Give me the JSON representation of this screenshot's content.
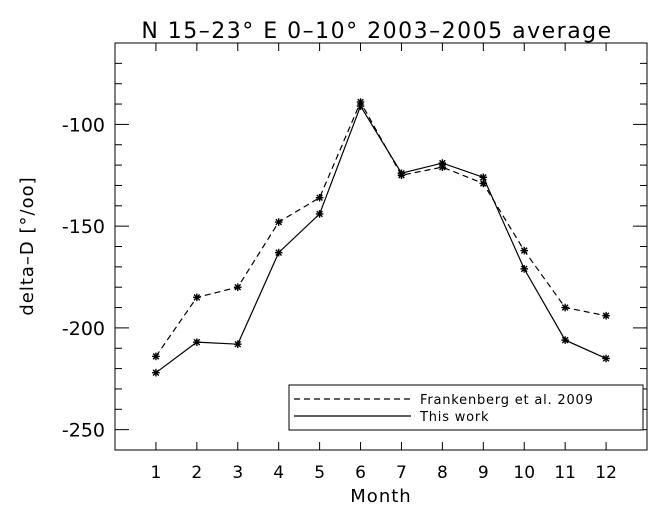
{
  "chart_data": {
    "type": "line",
    "title": "N 15–23° E 0–10° 2003–2005 average",
    "xlabel": "Month",
    "ylabel": "delta–D [°/oo]",
    "x": [
      1,
      2,
      3,
      4,
      5,
      6,
      7,
      8,
      9,
      10,
      11,
      12
    ],
    "xticks": [
      1,
      2,
      3,
      4,
      5,
      6,
      7,
      8,
      9,
      10,
      11,
      12
    ],
    "yticks": [
      -100,
      -150,
      -200,
      -250
    ],
    "xlim": [
      0,
      13
    ],
    "ylim": [
      -260,
      -60
    ],
    "grid": false,
    "legend": "bottom-right",
    "series": [
      {
        "name": "Frankenberg et al. 2009",
        "style": "dashed",
        "color": "#000000",
        "values": [
          -214,
          -185,
          -180,
          -148,
          -136,
          -89,
          -125,
          -121,
          -129,
          -162,
          -190,
          -194
        ]
      },
      {
        "name": "This work",
        "style": "solid",
        "color": "#000000",
        "values": [
          -222,
          -207,
          -208,
          -163,
          -144,
          -91,
          -124,
          -119,
          -126,
          -171,
          -206,
          -215
        ]
      }
    ]
  }
}
